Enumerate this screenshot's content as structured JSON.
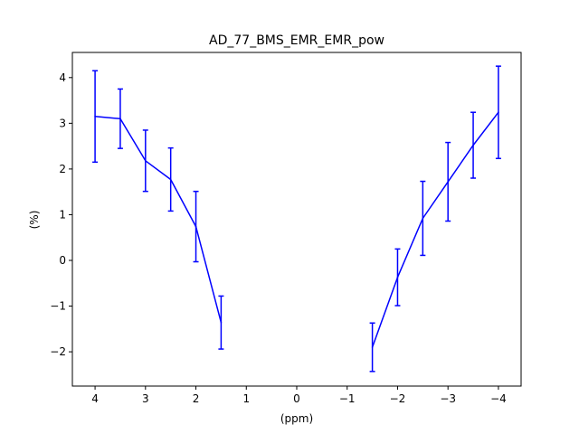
{
  "chart_data": {
    "type": "line",
    "title": "AD_77_BMS_EMR_EMR_pow",
    "xlabel": "(ppm)",
    "ylabel": "(%)",
    "xlim": [
      4.45,
      -4.45
    ],
    "ylim": [
      -2.75,
      4.55
    ],
    "x_inverted": true,
    "grid": false,
    "line_color": "#0000ff",
    "x_ticks": [
      {
        "value": 4,
        "label": "4"
      },
      {
        "value": 3,
        "label": "3"
      },
      {
        "value": 2,
        "label": "2"
      },
      {
        "value": 1,
        "label": "1"
      },
      {
        "value": 0,
        "label": "0"
      },
      {
        "value": -1,
        "label": "−1"
      },
      {
        "value": -2,
        "label": "−2"
      },
      {
        "value": -3,
        "label": "−3"
      },
      {
        "value": -4,
        "label": "−4"
      }
    ],
    "y_ticks": [
      {
        "value": 4,
        "label": "4"
      },
      {
        "value": 3,
        "label": "3"
      },
      {
        "value": 2,
        "label": "2"
      },
      {
        "value": 1,
        "label": "1"
      },
      {
        "value": 0,
        "label": "0"
      },
      {
        "value": -1,
        "label": "−1"
      },
      {
        "value": -2,
        "label": "−2"
      }
    ],
    "segments": [
      {
        "x": [
          4.0,
          3.5,
          3.0,
          2.5,
          2.0,
          1.5
        ],
        "y": [
          3.15,
          3.1,
          2.18,
          1.77,
          0.74,
          -1.36
        ],
        "err": [
          1.0,
          0.65,
          0.67,
          0.69,
          0.77,
          0.58
        ]
      },
      {
        "x": [
          -1.5,
          -2.0,
          -2.5,
          -3.0,
          -3.5,
          -4.0
        ],
        "y": [
          -1.9,
          -0.37,
          0.92,
          1.72,
          2.52,
          3.24
        ],
        "err": [
          0.53,
          0.62,
          0.81,
          0.86,
          0.72,
          1.01
        ]
      }
    ]
  }
}
